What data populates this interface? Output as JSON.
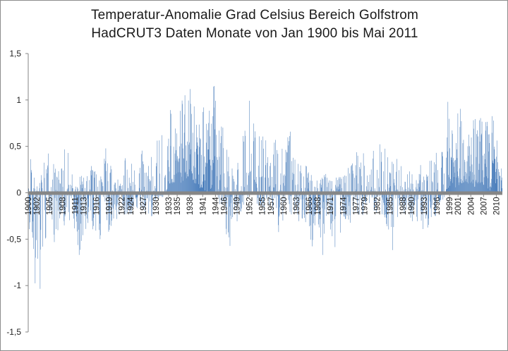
{
  "colors": {
    "bars": "#4f81bd",
    "axis": "#868686",
    "gridline": "#c8c8c8",
    "text": "#222222"
  },
  "chart_data": {
    "type": "bar",
    "title": "Temperatur-Anomalie  Grad Celsius  Bereich  Golfstrom",
    "subtitle": "HadCRUT3 Daten  Monate von Jan 1900 bis Mai 2011",
    "xlabel": "",
    "ylabel": "",
    "ylim": [
      -1.5,
      1.5
    ],
    "yticks": [
      -1.5,
      -1,
      -0.5,
      0,
      0.5,
      1,
      1.5
    ],
    "ytick_labels": [
      "-1,5",
      "-1",
      "-0,5",
      "0",
      "0,5",
      "1",
      "1,5"
    ],
    "grid": "horizontal",
    "legend": "none",
    "x_start": "Jan 1900",
    "x_end": "Mai 2011",
    "xtick_labels": [
      "1900",
      "1902",
      "1905",
      "1908",
      "1911",
      "1913",
      "1916",
      "1919",
      "1922",
      "1924",
      "1927",
      "1930",
      "1933",
      "1935",
      "1938",
      "1941",
      "1944",
      "1946",
      "1949",
      "1952",
      "1955",
      "1957",
      "1960",
      "1963",
      "1966",
      "1968",
      "1971",
      "1974",
      "1977",
      "1979",
      "1982",
      "1985",
      "1988",
      "1990",
      "1993",
      "1996",
      "1999",
      "2001",
      "2004",
      "2007",
      "2010"
    ],
    "xtick_years": [
      1900,
      1902,
      1905,
      1908,
      1911,
      1913,
      1916,
      1919,
      1922,
      1924,
      1927,
      1930,
      1933,
      1935,
      1938,
      1941,
      1944,
      1946,
      1949,
      1952,
      1955,
      1957,
      1960,
      1963,
      1966,
      1968,
      1971,
      1974,
      1977,
      1979,
      1982,
      1985,
      1988,
      1990,
      1993,
      1996,
      1999,
      2001,
      2004,
      2007,
      2010
    ],
    "monthly_envelope": [
      {
        "year": 1900.0,
        "max": 0.3,
        "min": -0.8
      },
      {
        "year": 1900.5,
        "max": 0.5,
        "min": -0.35
      },
      {
        "year": 1901.0,
        "max": 0.3,
        "min": -0.55
      },
      {
        "year": 1901.8,
        "max": 0.1,
        "min": -1.28
      },
      {
        "year": 1902.3,
        "max": 0.05,
        "min": -1.4
      },
      {
        "year": 1902.8,
        "max": 0.15,
        "min": -1.3
      },
      {
        "year": 1903.3,
        "max": 0.3,
        "min": -0.85
      },
      {
        "year": 1904.0,
        "max": 0.35,
        "min": -0.6
      },
      {
        "year": 1905.0,
        "max": 0.6,
        "min": -0.45
      },
      {
        "year": 1906.0,
        "max": 0.35,
        "min": -0.55
      },
      {
        "year": 1907.0,
        "max": 0.25,
        "min": -0.4
      },
      {
        "year": 1908.0,
        "max": 0.45,
        "min": -0.45
      },
      {
        "year": 1909.0,
        "max": 0.55,
        "min": -0.35
      },
      {
        "year": 1910.0,
        "max": 0.2,
        "min": -0.45
      },
      {
        "year": 1911.0,
        "max": 0.2,
        "min": -0.4
      },
      {
        "year": 1912.0,
        "max": 0.25,
        "min": -0.75
      },
      {
        "year": 1913.0,
        "max": 0.2,
        "min": -0.5
      },
      {
        "year": 1914.0,
        "max": 0.3,
        "min": -0.35
      },
      {
        "year": 1915.0,
        "max": 0.35,
        "min": -0.45
      },
      {
        "year": 1916.0,
        "max": 0.2,
        "min": -0.45
      },
      {
        "year": 1917.0,
        "max": 0.25,
        "min": -0.82
      },
      {
        "year": 1918.0,
        "max": 0.5,
        "min": -0.4
      },
      {
        "year": 1919.0,
        "max": 0.4,
        "min": -0.55
      },
      {
        "year": 1920.0,
        "max": 0.3,
        "min": -0.35
      },
      {
        "year": 1921.0,
        "max": 0.35,
        "min": -0.3
      },
      {
        "year": 1922.0,
        "max": 0.3,
        "min": -0.25
      },
      {
        "year": 1923.0,
        "max": 0.4,
        "min": -0.3
      },
      {
        "year": 1924.0,
        "max": 0.25,
        "min": -0.3
      },
      {
        "year": 1925.0,
        "max": 0.55,
        "min": -0.2
      },
      {
        "year": 1926.0,
        "max": 0.4,
        "min": -0.15
      },
      {
        "year": 1927.0,
        "max": 0.5,
        "min": -0.25
      },
      {
        "year": 1928.0,
        "max": 0.35,
        "min": -0.2
      },
      {
        "year": 1929.0,
        "max": 0.55,
        "min": -0.3
      },
      {
        "year": 1930.0,
        "max": 0.75,
        "min": -0.1
      },
      {
        "year": 1931.0,
        "max": 0.65,
        "min": -0.05
      },
      {
        "year": 1932.0,
        "max": 0.8,
        "min": -0.05
      },
      {
        "year": 1933.0,
        "max": 1.05,
        "min": 0.1
      },
      {
        "year": 1934.0,
        "max": 0.85,
        "min": 0.1
      },
      {
        "year": 1935.0,
        "max": 1.0,
        "min": 0.05
      },
      {
        "year": 1936.0,
        "max": 1.05,
        "min": 0.1
      },
      {
        "year": 1937.0,
        "max": 1.1,
        "min": 0.15
      },
      {
        "year": 1938.0,
        "max": 1.2,
        "min": 0.2
      },
      {
        "year": 1939.0,
        "max": 1.0,
        "min": 0.1
      },
      {
        "year": 1940.0,
        "max": 0.95,
        "min": 0.05
      },
      {
        "year": 1941.0,
        "max": 0.95,
        "min": 0.05
      },
      {
        "year": 1942.0,
        "max": 0.9,
        "min": 0.0
      },
      {
        "year": 1943.0,
        "max": 1.05,
        "min": 0.05
      },
      {
        "year": 1944.0,
        "max": 1.27,
        "min": 0.0
      },
      {
        "year": 1945.0,
        "max": 0.85,
        "min": -0.25
      },
      {
        "year": 1946.0,
        "max": 0.8,
        "min": -0.35
      },
      {
        "year": 1947.0,
        "max": 0.4,
        "min": -0.65
      },
      {
        "year": 1948.0,
        "max": 0.35,
        "min": -0.45
      },
      {
        "year": 1949.0,
        "max": 0.3,
        "min": -0.35
      },
      {
        "year": 1950.0,
        "max": 0.55,
        "min": -0.25
      },
      {
        "year": 1951.0,
        "max": 0.8,
        "min": -0.1
      },
      {
        "year": 1952.0,
        "max": 1.02,
        "min": 0.0
      },
      {
        "year": 1953.0,
        "max": 0.85,
        "min": -0.05
      },
      {
        "year": 1954.0,
        "max": 0.65,
        "min": -0.15
      },
      {
        "year": 1955.0,
        "max": 0.7,
        "min": -0.2
      },
      {
        "year": 1956.0,
        "max": 0.55,
        "min": -0.3
      },
      {
        "year": 1957.0,
        "max": 0.65,
        "min": -0.2
      },
      {
        "year": 1958.0,
        "max": 0.75,
        "min": -0.25
      },
      {
        "year": 1959.0,
        "max": 0.6,
        "min": -0.52
      },
      {
        "year": 1960.0,
        "max": 0.6,
        "min": -0.3
      },
      {
        "year": 1961.0,
        "max": 0.85,
        "min": -0.2
      },
      {
        "year": 1962.0,
        "max": 0.7,
        "min": -0.25
      },
      {
        "year": 1963.0,
        "max": 0.35,
        "min": -0.3
      },
      {
        "year": 1964.0,
        "max": 0.3,
        "min": -0.35
      },
      {
        "year": 1965.0,
        "max": 0.35,
        "min": -0.4
      },
      {
        "year": 1966.0,
        "max": 0.25,
        "min": -0.55
      },
      {
        "year": 1967.0,
        "max": 0.2,
        "min": -0.65
      },
      {
        "year": 1968.0,
        "max": 0.15,
        "min": -0.83
      },
      {
        "year": 1969.0,
        "max": 0.2,
        "min": -0.7
      },
      {
        "year": 1970.0,
        "max": 0.25,
        "min": -0.6
      },
      {
        "year": 1971.0,
        "max": 0.2,
        "min": -0.45
      },
      {
        "year": 1972.0,
        "max": 0.15,
        "min": -0.65
      },
      {
        "year": 1973.0,
        "max": 0.25,
        "min": -0.5
      },
      {
        "year": 1974.0,
        "max": 0.2,
        "min": -0.75
      },
      {
        "year": 1975.0,
        "max": 0.3,
        "min": -0.4
      },
      {
        "year": 1976.0,
        "max": 0.35,
        "min": -0.35
      },
      {
        "year": 1977.0,
        "max": 0.55,
        "min": -0.25
      },
      {
        "year": 1978.0,
        "max": 0.45,
        "min": -0.3
      },
      {
        "year": 1979.0,
        "max": 0.5,
        "min": -0.2
      },
      {
        "year": 1980.0,
        "max": 0.65,
        "min": -0.15
      },
      {
        "year": 1981.0,
        "max": 0.55,
        "min": -0.2
      },
      {
        "year": 1982.0,
        "max": 0.6,
        "min": -0.25
      },
      {
        "year": 1983.0,
        "max": 0.72,
        "min": -0.3
      },
      {
        "year": 1984.0,
        "max": 0.9,
        "min": -0.35
      },
      {
        "year": 1985.0,
        "max": 0.35,
        "min": -0.55
      },
      {
        "year": 1986.0,
        "max": 0.35,
        "min": -0.7
      },
      {
        "year": 1987.0,
        "max": 0.5,
        "min": -0.3
      },
      {
        "year": 1988.0,
        "max": 0.4,
        "min": -0.3
      },
      {
        "year": 1989.0,
        "max": 0.3,
        "min": -0.25
      },
      {
        "year": 1990.0,
        "max": 0.35,
        "min": -0.3
      },
      {
        "year": 1991.0,
        "max": 0.3,
        "min": -0.35
      },
      {
        "year": 1992.0,
        "max": 0.3,
        "min": -0.45
      },
      {
        "year": 1993.0,
        "max": 0.3,
        "min": -0.5
      },
      {
        "year": 1994.0,
        "max": 0.35,
        "min": -0.35
      },
      {
        "year": 1995.0,
        "max": 0.4,
        "min": -0.3
      },
      {
        "year": 1996.0,
        "max": 0.45,
        "min": -0.25
      },
      {
        "year": 1997.0,
        "max": 0.5,
        "min": -0.15
      },
      {
        "year": 1998.0,
        "max": 0.55,
        "min": 0.0
      },
      {
        "year": 1998.5,
        "max": 1.18,
        "min": 0.05
      },
      {
        "year": 1999.5,
        "max": 1.0,
        "min": 0.1
      },
      {
        "year": 2000.5,
        "max": 0.9,
        "min": 0.05
      },
      {
        "year": 2001.5,
        "max": 0.95,
        "min": 0.1
      },
      {
        "year": 2002.5,
        "max": 0.85,
        "min": 0.05
      },
      {
        "year": 2003.5,
        "max": 0.9,
        "min": 0.1
      },
      {
        "year": 2004.5,
        "max": 0.85,
        "min": 0.05
      },
      {
        "year": 2005.5,
        "max": 0.8,
        "min": 0.1
      },
      {
        "year": 2006.5,
        "max": 0.85,
        "min": 0.1
      },
      {
        "year": 2007.5,
        "max": 0.8,
        "min": 0.05
      },
      {
        "year": 2008.5,
        "max": 0.9,
        "min": 0.0
      },
      {
        "year": 2009.5,
        "max": 0.85,
        "min": 0.05
      },
      {
        "year": 2010.5,
        "max": 0.4,
        "min": 0.0
      },
      {
        "year": 2011.4,
        "max": 0.2,
        "min": 0.0
      }
    ]
  }
}
